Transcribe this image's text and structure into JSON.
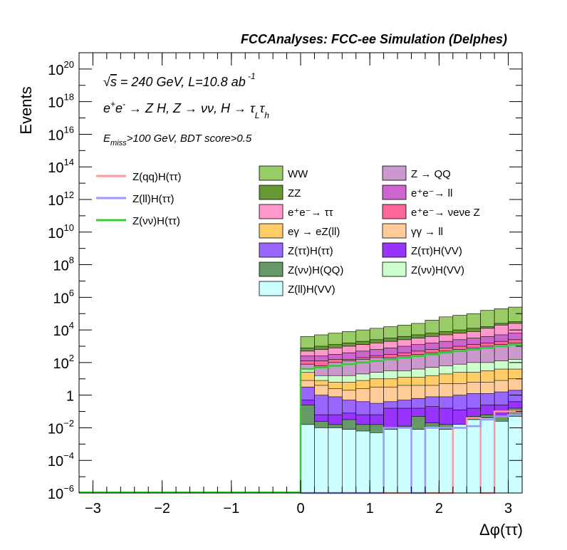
{
  "chart_data": {
    "type": "stacked-histogram-log",
    "title": "FCCAnalyses: FCC-ee Simulation (Delphes)",
    "annotations": [
      "√s = 240 GeV, L=10.8 ab⁻¹",
      "e⁺e⁻ → Z H, Z → νν, H → τ_L τ_h",
      "E_miss>100 GeV, BDT score>0.5"
    ],
    "xlabel": "Δφ(ττ)",
    "ylabel": "Events",
    "xlim": [
      -3.2,
      3.2
    ],
    "ylim_log10": [
      -6,
      21
    ],
    "log_y": true,
    "x_ticks": [
      -3,
      -2,
      -1,
      0,
      1,
      2,
      3
    ],
    "x_tick_labels": [
      "−3",
      "−2",
      "−1",
      "0",
      "1",
      "2",
      "3"
    ],
    "y_ticks": [
      {
        "exp": -6,
        "label": "10",
        "sup": "−6"
      },
      {
        "exp": -4,
        "label": "10",
        "sup": "−4"
      },
      {
        "exp": -2,
        "label": "10",
        "sup": "−2"
      },
      {
        "exp": 0,
        "label": "1",
        "sup": ""
      },
      {
        "exp": 2,
        "label": "10",
        "sup": "2"
      },
      {
        "exp": 4,
        "label": "10",
        "sup": "4"
      },
      {
        "exp": 6,
        "label": "10",
        "sup": "6"
      },
      {
        "exp": 8,
        "label": "10",
        "sup": "8"
      },
      {
        "exp": 10,
        "label": "10",
        "sup": "10"
      },
      {
        "exp": 12,
        "label": "10",
        "sup": "12"
      },
      {
        "exp": 14,
        "label": "10",
        "sup": "14"
      },
      {
        "exp": 16,
        "label": "10",
        "sup": "16"
      },
      {
        "exp": 18,
        "label": "10",
        "sup": "18"
      },
      {
        "exp": 20,
        "label": "10",
        "sup": "20"
      }
    ],
    "bin_edges": [
      0,
      0.2,
      0.4,
      0.6,
      0.8,
      1.0,
      1.2,
      1.4,
      1.6,
      1.8,
      2.0,
      2.2,
      2.4,
      2.6,
      2.8,
      3.0,
      3.2
    ],
    "stack_bottom_to_top": [
      {
        "name": "Z(ll)H(VV)",
        "color": "#ccffff",
        "cumulative_log10": [
          -1.8,
          -2.0,
          -2.0,
          -2.1,
          -2.2,
          -2.3,
          -2.1,
          -2.0,
          -2.1,
          -1.9,
          -2.1,
          -1.8,
          -1.5,
          -1.4,
          -1.6,
          -1.3
        ]
      },
      {
        "name": "Z(νν)H(QQ)",
        "color": "#669966",
        "cumulative_log10": [
          -0.6,
          -1.6,
          -1.8,
          -1.5,
          -1.8,
          -1.8,
          -2.0,
          -1.9,
          -1.3,
          -1.7,
          -1.8,
          -2.0,
          -1.3,
          -1.2,
          -1.3,
          -0.8
        ]
      },
      {
        "name": "Z(ττ)H(VV)",
        "color": "#9933ff",
        "cumulative_log10": [
          -0.3,
          -1.2,
          -1.2,
          -1.1,
          -1.2,
          -1.2,
          -0.8,
          -0.8,
          -0.8,
          -0.7,
          -0.8,
          -0.9,
          -0.8,
          -0.6,
          -0.6,
          -0.4
        ]
      },
      {
        "name": "Z(ττ)H(ττ)",
        "color": "#9966ff",
        "cumulative_log10": [
          0.5,
          0.0,
          -0.1,
          -0.3,
          -0.4,
          -0.5,
          -0.4,
          -0.3,
          -0.2,
          -0.1,
          -0.1,
          0.0,
          0.1,
          0.1,
          0.2,
          0.3
        ]
      },
      {
        "name": "γγ → ll",
        "color": "#ffcc99",
        "cumulative_log10": [
          0.9,
          0.6,
          0.4,
          0.3,
          0.4,
          0.5,
          0.5,
          0.6,
          0.6,
          0.6,
          0.7,
          0.7,
          0.8,
          0.8,
          0.9,
          1.0
        ]
      },
      {
        "name": "eγ → eZ(ll)",
        "color": "#ffcc66",
        "cumulative_log10": [
          1.4,
          0.9,
          0.8,
          0.8,
          0.9,
          1.0,
          1.0,
          1.1,
          1.1,
          1.2,
          1.3,
          1.4,
          1.4,
          1.5,
          1.6,
          1.6
        ]
      },
      {
        "name": "Z(νν)H(VV)",
        "color": "#ccffcc",
        "cumulative_log10": [
          1.6,
          1.2,
          1.2,
          1.2,
          1.3,
          1.4,
          1.5,
          1.5,
          1.6,
          1.7,
          1.8,
          1.9,
          2.0,
          2.0,
          2.1,
          2.2
        ]
      },
      {
        "name": "Z → QQ",
        "color": "#cc99cc",
        "cumulative_log10": [
          1.9,
          1.8,
          2.0,
          2.1,
          2.2,
          2.3,
          2.3,
          2.4,
          2.5,
          2.6,
          2.7,
          2.8,
          2.9,
          3.0,
          3.1,
          3.2
        ]
      },
      {
        "name": "e⁺e⁻ → νeνe Z",
        "color": "#ff6699",
        "cumulative_log10": [
          2.1,
          2.1,
          2.2,
          2.2,
          2.3,
          2.4,
          2.5,
          2.6,
          2.7,
          2.8,
          2.9,
          3.0,
          3.1,
          3.2,
          3.3,
          3.4
        ]
      },
      {
        "name": "e⁺e⁻ → ll",
        "color": "#cc66cc",
        "cumulative_log10": [
          2.4,
          2.4,
          2.5,
          2.6,
          2.7,
          2.8,
          2.9,
          3.0,
          3.1,
          3.2,
          3.3,
          3.4,
          3.5,
          3.6,
          3.7,
          3.8
        ]
      },
      {
        "name": "e⁺e⁻ → ττ",
        "color": "#ff99cc",
        "cumulative_log10": [
          2.7,
          2.8,
          2.9,
          3.0,
          3.1,
          3.2,
          3.3,
          3.4,
          3.5,
          3.6,
          3.7,
          3.8,
          3.9,
          4.1,
          4.3,
          4.4
        ]
      },
      {
        "name": "ZZ",
        "color": "#669933",
        "cumulative_log10": [
          2.9,
          3.0,
          3.1,
          3.2,
          3.3,
          3.4,
          3.5,
          3.6,
          3.7,
          3.8,
          3.9,
          4.0,
          4.1,
          4.2,
          4.4,
          4.5
        ]
      },
      {
        "name": "WW",
        "color": "#99cc66",
        "cumulative_log10": [
          3.6,
          3.7,
          3.8,
          3.9,
          4.0,
          4.1,
          4.2,
          4.3,
          4.4,
          4.6,
          4.8,
          4.9,
          5.0,
          5.2,
          5.3,
          5.4
        ]
      }
    ],
    "signal_lines": [
      {
        "name": "Z(qq)H(ττ)",
        "color": "#ff9999",
        "values_log10": [
          -6,
          -6,
          -6,
          -6,
          -6,
          -6,
          -6,
          -6,
          -6,
          -6,
          -6,
          -2.0,
          -1.4,
          -6,
          -1.0,
          -1.0
        ]
      },
      {
        "name": "Z(ll)H(ττ)",
        "color": "#9999ff",
        "values_log10": [
          -6,
          -6,
          -6,
          -6,
          -6,
          -6,
          -2.0,
          -2.0,
          -6,
          -2.0,
          -2.0,
          -2.0,
          -1.9,
          -1.5,
          -1.3,
          -1.2
        ]
      },
      {
        "name": "Z(νν)H(ττ)",
        "color": "#33cc33",
        "values_log10": [
          1.6,
          1.7,
          1.8,
          1.9,
          2.0,
          2.1,
          2.2,
          2.3,
          2.4,
          2.5,
          2.6,
          2.7,
          2.8,
          2.9,
          3.0,
          3.1
        ]
      }
    ],
    "line_legend": [
      "Z(qq)H(ττ)",
      "Z(ll)H(ττ)",
      "Z(νν)H(ττ)"
    ],
    "fill_legend_left": [
      "WW",
      "ZZ",
      "e⁺e⁻→ ττ",
      "eγ → eZ(ll)",
      "Z(ττ)H(ττ)",
      "Z(νν)H(QQ)",
      "Z(ll)H(VV)"
    ],
    "fill_legend_right": [
      "Z → QQ",
      "e⁺e⁻→ ll",
      "e⁺e⁻→ νeνe Z",
      "γγ → ll",
      "Z(ττ)H(VV)",
      "Z(νν)H(VV)"
    ],
    "fill_legend_left_colors": [
      "#99cc66",
      "#669933",
      "#ff99cc",
      "#ffcc66",
      "#9966ff",
      "#669966",
      "#ccffff"
    ],
    "fill_legend_right_colors": [
      "#cc99cc",
      "#cc66cc",
      "#ff6699",
      "#ffcc99",
      "#9933ff",
      "#ccffcc"
    ],
    "grid": false,
    "legend_placement": "top"
  }
}
